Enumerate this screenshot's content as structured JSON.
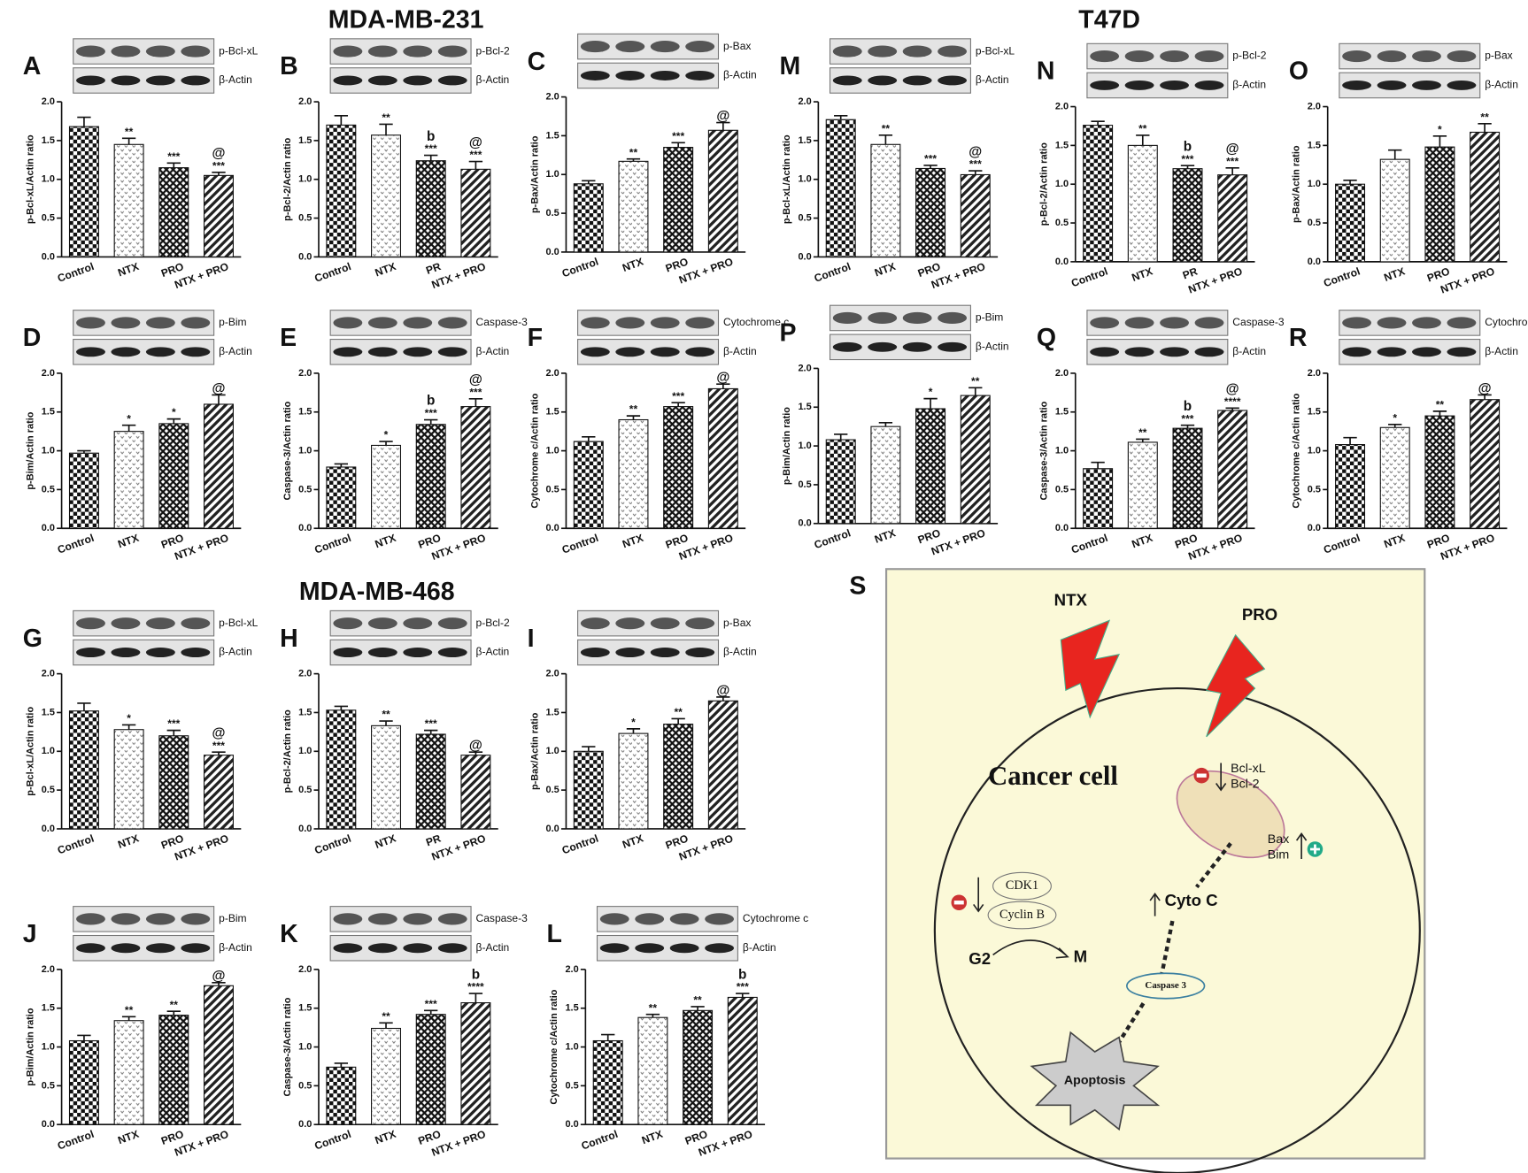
{
  "headings": [
    "MDA-MB-231",
    "T47D",
    "MDA-MB-468"
  ],
  "chart_data": [
    {
      "type": "bar",
      "panel": "A",
      "blot_labels": [
        "p-Bcl-xL",
        "β-Actin"
      ],
      "ylabel": "p-Bcl-xL/Actin ratio",
      "categories": [
        "Control",
        "NTX",
        "PRO",
        "NTX + PRO"
      ],
      "values": [
        1.68,
        1.45,
        1.15,
        1.05
      ],
      "errors": [
        0.12,
        0.08,
        0.06,
        0.04
      ],
      "annotations": [
        [],
        [
          "**"
        ],
        [
          "***"
        ],
        [
          "@",
          "***"
        ]
      ],
      "ylim": [
        0,
        2
      ],
      "yticks": [
        {
          "value": 0,
          "label": "0.0"
        },
        {
          "value": 0.5,
          "label": "0.5"
        },
        {
          "value": 1,
          "label": "1.0"
        },
        {
          "value": 1.5,
          "label": "1.5"
        },
        {
          "value": 2,
          "label": "2.0"
        }
      ]
    },
    {
      "type": "bar",
      "panel": "B",
      "blot_labels": [
        "p-Bcl-2",
        "β-Actin"
      ],
      "ylabel": "p-Bcl-2/Actin ratio",
      "categories": [
        "Control",
        "NTX",
        "PR",
        "NTX + PRO"
      ],
      "values": [
        1.7,
        1.57,
        1.24,
        1.13
      ],
      "errors": [
        0.12,
        0.14,
        0.07,
        0.1
      ],
      "annotations": [
        [],
        [
          "**"
        ],
        [
          "b",
          "***"
        ],
        [
          "@",
          "***"
        ]
      ],
      "ylim": [
        0,
        2
      ],
      "yticks": [
        {
          "value": 0,
          "label": "0.0"
        },
        {
          "value": 0.5,
          "label": "0.5"
        },
        {
          "value": 1,
          "label": "1.0"
        },
        {
          "value": 1.5,
          "label": "1.5"
        },
        {
          "value": 2,
          "label": "2.0"
        }
      ]
    },
    {
      "type": "bar",
      "panel": "C",
      "blot_labels": [
        "p-Bax",
        "β-Actin"
      ],
      "ylabel": "p-Bax/Actin ratio",
      "categories": [
        "Control",
        "NTX",
        "PRO",
        "NTX + PRO"
      ],
      "values": [
        0.88,
        1.17,
        1.35,
        1.57
      ],
      "errors": [
        0.04,
        0.03,
        0.06,
        0.1
      ],
      "annotations": [
        [],
        [
          "**"
        ],
        [
          "***"
        ],
        [
          "@"
        ]
      ],
      "ylim": [
        0,
        2
      ],
      "yticks": [
        {
          "value": 0,
          "label": "0.0"
        },
        {
          "value": 0.5,
          "label": "0.5"
        },
        {
          "value": 1,
          "label": "1.0"
        },
        {
          "value": 1.5,
          "label": "1.5"
        },
        {
          "value": 2,
          "label": "2.0"
        }
      ]
    },
    {
      "type": "bar",
      "panel": "D",
      "blot_labels": [
        "p-Bim",
        "β-Actin"
      ],
      "ylabel": "p-Bim/Actin ratio",
      "categories": [
        "Control",
        "NTX",
        "PRO",
        "NTX + PRO"
      ],
      "values": [
        0.97,
        1.25,
        1.35,
        1.6
      ],
      "errors": [
        0.03,
        0.08,
        0.06,
        0.12
      ],
      "annotations": [
        [],
        [
          "*"
        ],
        [
          "*"
        ],
        [
          "@"
        ]
      ],
      "ylim": [
        0,
        2
      ],
      "yticks": [
        {
          "value": 0,
          "label": "0.0"
        },
        {
          "value": 0.5,
          "label": "0.5"
        },
        {
          "value": 1,
          "label": "1.0"
        },
        {
          "value": 1.5,
          "label": "1.5"
        },
        {
          "value": 2,
          "label": "2.0"
        }
      ]
    },
    {
      "type": "bar",
      "panel": "E",
      "blot_labels": [
        "Caspase-3",
        "β-Actin"
      ],
      "ylabel": "Caspase-3/Actin ratio",
      "categories": [
        "Control",
        "NTX",
        "PRO",
        "NTX + PRO"
      ],
      "values": [
        0.79,
        1.07,
        1.34,
        1.57
      ],
      "errors": [
        0.04,
        0.05,
        0.06,
        0.1
      ],
      "annotations": [
        [],
        [
          "*"
        ],
        [
          "b",
          "***"
        ],
        [
          "@",
          "***"
        ]
      ],
      "ylim": [
        0,
        2
      ],
      "yticks": [
        {
          "value": 0,
          "label": "0.0"
        },
        {
          "value": 0.5,
          "label": "0.5"
        },
        {
          "value": 1,
          "label": "1.0"
        },
        {
          "value": 1.5,
          "label": "1.5"
        },
        {
          "value": 2,
          "label": "2.0"
        }
      ]
    },
    {
      "type": "bar",
      "panel": "F",
      "blot_labels": [
        "Cytochrome c",
        "β-Actin"
      ],
      "ylabel": "Cytochrome c/Actin ratio",
      "categories": [
        "Control",
        "NTX",
        "PRO",
        "NTX + PRO"
      ],
      "values": [
        1.12,
        1.4,
        1.57,
        1.8
      ],
      "errors": [
        0.06,
        0.05,
        0.05,
        0.06
      ],
      "annotations": [
        [],
        [
          "**"
        ],
        [
          "***"
        ],
        [
          "@"
        ]
      ],
      "ylim": [
        0,
        2
      ],
      "yticks": [
        {
          "value": 0,
          "label": "0.0"
        },
        {
          "value": 0.5,
          "label": "0.5"
        },
        {
          "value": 1,
          "label": "1.0"
        },
        {
          "value": 1.5,
          "label": "1.5"
        },
        {
          "value": 2,
          "label": "2.0"
        }
      ]
    },
    {
      "type": "bar",
      "panel": "G",
      "blot_labels": [
        "p-Bcl-xL",
        "β-Actin"
      ],
      "ylabel": "p-Bcl-xL/Actin ratio",
      "categories": [
        "Control",
        "NTX",
        "PRO",
        "NTX + PRO"
      ],
      "values": [
        1.52,
        1.28,
        1.2,
        0.95
      ],
      "errors": [
        0.1,
        0.06,
        0.07,
        0.04
      ],
      "annotations": [
        [],
        [
          "*"
        ],
        [
          "***"
        ],
        [
          "@",
          "***"
        ]
      ],
      "ylim": [
        0,
        2
      ],
      "yticks": [
        {
          "value": 0,
          "label": "0.0"
        },
        {
          "value": 0.5,
          "label": "0.5"
        },
        {
          "value": 1,
          "label": "1.0"
        },
        {
          "value": 1.5,
          "label": "1.5"
        },
        {
          "value": 2,
          "label": "2.0"
        }
      ]
    },
    {
      "type": "bar",
      "panel": "H",
      "blot_labels": [
        "p-Bcl-2",
        "β-Actin"
      ],
      "ylabel": "p-Bcl-2/Actin ratio",
      "categories": [
        "Control",
        "NTX",
        "PR",
        "NTX + PRO"
      ],
      "values": [
        1.53,
        1.33,
        1.22,
        0.95
      ],
      "errors": [
        0.05,
        0.06,
        0.05,
        0.04
      ],
      "annotations": [
        [],
        [
          "**"
        ],
        [
          "***"
        ],
        [
          "@"
        ]
      ],
      "ylim": [
        0,
        2
      ],
      "yticks": [
        {
          "value": 0,
          "label": "0.0"
        },
        {
          "value": 0.5,
          "label": "0.5"
        },
        {
          "value": 1,
          "label": "1.0"
        },
        {
          "value": 1.5,
          "label": "1.5"
        },
        {
          "value": 2,
          "label": "2.0"
        }
      ]
    },
    {
      "type": "bar",
      "panel": "I",
      "blot_labels": [
        "p-Bax",
        "β-Actin"
      ],
      "ylabel": "p-Bax/Actin ratio",
      "categories": [
        "Control",
        "NTX",
        "PRO",
        "NTX + PRO"
      ],
      "values": [
        1.0,
        1.23,
        1.35,
        1.65
      ],
      "errors": [
        0.06,
        0.06,
        0.07,
        0.05
      ],
      "annotations": [
        [],
        [
          "*"
        ],
        [
          "**"
        ],
        [
          "@"
        ]
      ],
      "ylim": [
        0,
        2
      ],
      "yticks": [
        {
          "value": 0,
          "label": "0.0"
        },
        {
          "value": 0.5,
          "label": "0.5"
        },
        {
          "value": 1,
          "label": "1.0"
        },
        {
          "value": 1.5,
          "label": "1.5"
        },
        {
          "value": 2,
          "label": "2.0"
        }
      ]
    },
    {
      "type": "bar",
      "panel": "J",
      "blot_labels": [
        "p-Bim",
        "β-Actin"
      ],
      "ylabel": "p-Bim/Actin ratio",
      "categories": [
        "Control",
        "NTX",
        "PRO",
        "NTX + PRO"
      ],
      "values": [
        1.08,
        1.34,
        1.41,
        1.79
      ],
      "errors": [
        0.07,
        0.05,
        0.05,
        0.04
      ],
      "annotations": [
        [],
        [
          "**"
        ],
        [
          "**"
        ],
        [
          "@"
        ]
      ],
      "ylim": [
        0,
        2
      ],
      "yticks": [
        {
          "value": 0,
          "label": "0.0"
        },
        {
          "value": 0.5,
          "label": "0.5"
        },
        {
          "value": 1,
          "label": "1.0"
        },
        {
          "value": 1.5,
          "label": "1.5"
        },
        {
          "value": 2,
          "label": "2.0"
        }
      ]
    },
    {
      "type": "bar",
      "panel": "K",
      "blot_labels": [
        "Caspase-3",
        "β-Actin"
      ],
      "ylabel": "Caspase-3/Actin ratio",
      "categories": [
        "Control",
        "NTX",
        "PRO",
        "NTX + PRO"
      ],
      "values": [
        0.74,
        1.24,
        1.42,
        1.57
      ],
      "errors": [
        0.05,
        0.07,
        0.05,
        0.12
      ],
      "annotations": [
        [],
        [
          "**"
        ],
        [
          "***"
        ],
        [
          "b",
          "****"
        ]
      ],
      "ylim": [
        0,
        2
      ],
      "yticks": [
        {
          "value": 0,
          "label": "0.0"
        },
        {
          "value": 0.5,
          "label": "0.5"
        },
        {
          "value": 1,
          "label": "1.0"
        },
        {
          "value": 1.5,
          "label": "1.5"
        },
        {
          "value": 2,
          "label": "2.0"
        }
      ]
    },
    {
      "type": "bar",
      "panel": "L",
      "blot_labels": [
        "Cytochrome c",
        "β-Actin"
      ],
      "ylabel": "Cytochrome c/Actin ratio",
      "categories": [
        "Control",
        "NTX",
        "PRO",
        "NTX + PRO"
      ],
      "values": [
        1.08,
        1.38,
        1.47,
        1.64
      ],
      "errors": [
        0.08,
        0.04,
        0.05,
        0.05
      ],
      "annotations": [
        [],
        [
          "**"
        ],
        [
          "**"
        ],
        [
          "b",
          "***"
        ]
      ],
      "ylim": [
        0,
        2
      ],
      "yticks": [
        {
          "value": 0,
          "label": "0.0"
        },
        {
          "value": 0.5,
          "label": "0.5"
        },
        {
          "value": 1,
          "label": "1.0"
        },
        {
          "value": 1.5,
          "label": "1.5"
        },
        {
          "value": 2,
          "label": "2.0"
        }
      ]
    },
    {
      "type": "bar",
      "panel": "M",
      "blot_labels": [
        "p-Bcl-xL",
        "β-Actin"
      ],
      "ylabel": "p-Bcl-xL/Actin ratio",
      "categories": [
        "Control",
        "NTX",
        "PRO",
        "NTX + PRO"
      ],
      "values": [
        1.77,
        1.45,
        1.14,
        1.06
      ],
      "errors": [
        0.05,
        0.12,
        0.04,
        0.05
      ],
      "annotations": [
        [],
        [
          "**"
        ],
        [
          "***"
        ],
        [
          "@",
          "***"
        ]
      ],
      "ylim": [
        0,
        2
      ],
      "yticks": [
        {
          "value": 0,
          "label": "0.0"
        },
        {
          "value": 0.5,
          "label": "0.5"
        },
        {
          "value": 1,
          "label": "1.0"
        },
        {
          "value": 1.5,
          "label": "1.5"
        },
        {
          "value": 2,
          "label": "2.0"
        }
      ]
    },
    {
      "type": "bar",
      "panel": "N",
      "blot_labels": [
        "p-Bcl-2",
        "β-Actin"
      ],
      "ylabel": "p-Bcl-2/Actin ratio",
      "categories": [
        "Control",
        "NTX",
        "PR",
        "NTX + PRO"
      ],
      "values": [
        1.76,
        1.5,
        1.2,
        1.12
      ],
      "errors": [
        0.05,
        0.13,
        0.04,
        0.09
      ],
      "annotations": [
        [],
        [
          "**"
        ],
        [
          "b",
          "***"
        ],
        [
          "@",
          "***"
        ]
      ],
      "ylim": [
        0,
        2
      ],
      "yticks": [
        {
          "value": 0,
          "label": "0.0"
        },
        {
          "value": 0.5,
          "label": "0.5"
        },
        {
          "value": 1,
          "label": "1.0"
        },
        {
          "value": 1.5,
          "label": "1.5"
        },
        {
          "value": 2,
          "label": "2.0"
        }
      ]
    },
    {
      "type": "bar",
      "panel": "O",
      "blot_labels": [
        "p-Bax",
        "β-Actin"
      ],
      "ylabel": "p-Bax/Actin ratio",
      "categories": [
        "Control",
        "NTX",
        "PRO",
        "NTX + PRO"
      ],
      "values": [
        1.0,
        1.32,
        1.48,
        1.67
      ],
      "errors": [
        0.05,
        0.12,
        0.14,
        0.11
      ],
      "annotations": [
        [],
        [],
        [
          "*"
        ],
        [
          "**"
        ]
      ],
      "ylim": [
        0,
        2
      ],
      "yticks": [
        {
          "value": 0,
          "label": "0.0"
        },
        {
          "value": 0.5,
          "label": "0.5"
        },
        {
          "value": 1,
          "label": "1.0"
        },
        {
          "value": 1.5,
          "label": "1.5"
        },
        {
          "value": 2,
          "label": "2.0"
        }
      ]
    },
    {
      "type": "bar",
      "panel": "P",
      "blot_labels": [
        "p-Bim",
        "β-Actin"
      ],
      "ylabel": "p-Bim/Actin ratio",
      "categories": [
        "Control",
        "NTX",
        "PRO",
        "NTX + PRO"
      ],
      "values": [
        1.08,
        1.25,
        1.48,
        1.65
      ],
      "errors": [
        0.07,
        0.05,
        0.13,
        0.1
      ],
      "annotations": [
        [],
        [],
        [
          "*"
        ],
        [
          "**"
        ]
      ],
      "ylim": [
        0,
        2
      ],
      "yticks": [
        {
          "value": 0,
          "label": "0.0"
        },
        {
          "value": 0.5,
          "label": "0.5"
        },
        {
          "value": 1,
          "label": "1.0"
        },
        {
          "value": 1.5,
          "label": "1.5"
        },
        {
          "value": 2,
          "label": "2.0"
        }
      ]
    },
    {
      "type": "bar",
      "panel": "Q",
      "blot_labels": [
        "Caspase-3",
        "β-Actin"
      ],
      "ylabel": "Caspase-3/Actin ratio",
      "categories": [
        "Control",
        "NTX",
        "PRO",
        "NTX + PRO"
      ],
      "values": [
        0.77,
        1.11,
        1.29,
        1.52
      ],
      "errors": [
        0.08,
        0.04,
        0.04,
        0.03
      ],
      "annotations": [
        [],
        [
          "**"
        ],
        [
          "b",
          "***"
        ],
        [
          "@",
          "****"
        ]
      ],
      "ylim": [
        0,
        2
      ],
      "yticks": [
        {
          "value": 0,
          "label": "0.0"
        },
        {
          "value": 0.5,
          "label": "0.5"
        },
        {
          "value": 1,
          "label": "1.0"
        },
        {
          "value": 1.5,
          "label": "1.5"
        },
        {
          "value": 2,
          "label": "2.0"
        }
      ]
    },
    {
      "type": "bar",
      "panel": "R",
      "blot_labels": [
        "Cytochrome c",
        "β-Actin"
      ],
      "ylabel": "Cytochrome c/Actin ratio",
      "categories": [
        "Control",
        "NTX",
        "PRO",
        "NTX + PRO"
      ],
      "values": [
        1.08,
        1.3,
        1.45,
        1.66
      ],
      "errors": [
        0.09,
        0.04,
        0.06,
        0.06
      ],
      "annotations": [
        [],
        [
          "*"
        ],
        [
          "**"
        ],
        [
          "@"
        ]
      ],
      "ylim": [
        0,
        2
      ],
      "yticks": [
        {
          "value": 0,
          "label": "0.0"
        },
        {
          "value": 0.5,
          "label": "0.5"
        },
        {
          "value": 1,
          "label": "1.0"
        },
        {
          "value": 1.5,
          "label": "1.5"
        },
        {
          "value": 2,
          "label": "2.0"
        }
      ]
    }
  ],
  "diagram": {
    "panel": "S",
    "drugs": [
      "NTX",
      "PRO"
    ],
    "cell": "Cancer cell",
    "down": [
      "Bcl-xL",
      "Bcl-2"
    ],
    "up": [
      "Bax",
      "Bim"
    ],
    "cdk": [
      "CDK1",
      "Cyclin B"
    ],
    "phases": [
      "G2",
      "M"
    ],
    "cyto": "Cyto C",
    "caspase": "Caspase 3",
    "outcome": "Apoptosis"
  }
}
